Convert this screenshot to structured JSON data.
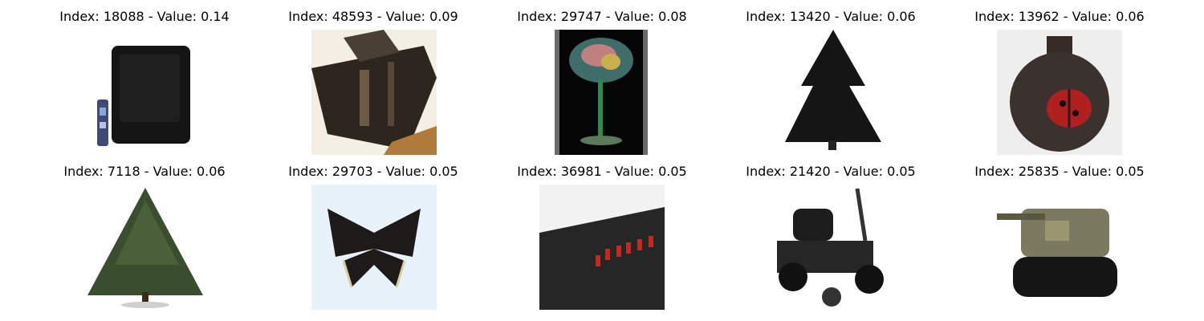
{
  "grid": {
    "items": [
      {
        "index_label": "Index: 18088 - Value: 0.14",
        "icon": "television-image"
      },
      {
        "index_label": "Index: 48593 - Value: 0.09",
        "icon": "wooden-box-image"
      },
      {
        "index_label": "Index: 29747 - Value: 0.08",
        "icon": "glass-image"
      },
      {
        "index_label": "Index: 13420 - Value: 0.06",
        "icon": "pine-tree-image"
      },
      {
        "index_label": "Index: 13962 - Value: 0.06",
        "icon": "ladybug-jar-image"
      },
      {
        "index_label": "Index: 7118 - Value: 0.06",
        "icon": "tree-image"
      },
      {
        "index_label": "Index: 29703 - Value: 0.05",
        "icon": "butterfly-image"
      },
      {
        "index_label": "Index: 36981 - Value: 0.05",
        "icon": "alarm-clock-image"
      },
      {
        "index_label": "Index: 21420 - Value: 0.05",
        "icon": "lawn-mower-image"
      },
      {
        "index_label": "Index: 25835 - Value: 0.05",
        "icon": "tank-image"
      }
    ]
  }
}
